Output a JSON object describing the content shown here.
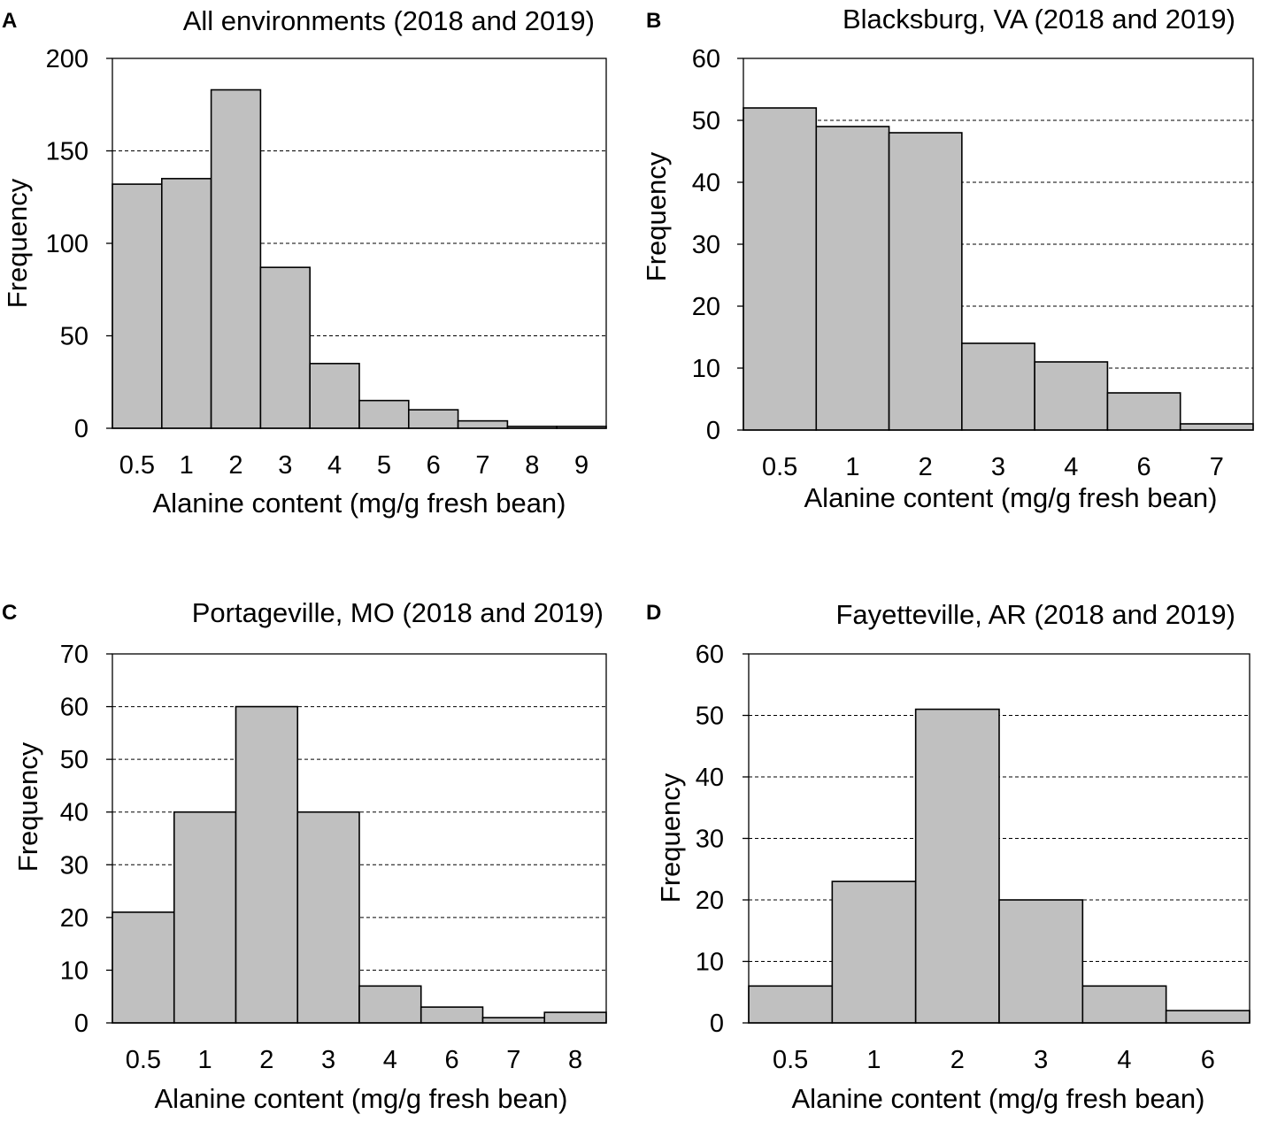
{
  "chart_data": [
    {
      "type": "bar",
      "panel": "A",
      "title": "All environments (2018 and 2019)",
      "xlabel": "Alanine content (mg/g fresh bean)",
      "ylabel": "Frequency",
      "categories": [
        "0.5",
        "1",
        "2",
        "3",
        "4",
        "5",
        "6",
        "7",
        "8",
        "9"
      ],
      "values": [
        132,
        135,
        183,
        87,
        35,
        15,
        10,
        4,
        1,
        1
      ],
      "ylim": [
        0,
        200
      ],
      "yticks": [
        0,
        50,
        100,
        150,
        200
      ],
      "grid": true
    },
    {
      "type": "bar",
      "panel": "B",
      "title": "Blacksburg, VA (2018 and 2019)",
      "xlabel": "Alanine content (mg/g fresh bean)",
      "ylabel": "Frequency",
      "categories": [
        "0.5",
        "1",
        "2",
        "3",
        "4",
        "6",
        "7"
      ],
      "values": [
        52,
        49,
        48,
        14,
        11,
        6,
        1
      ],
      "ylim": [
        0,
        60
      ],
      "yticks": [
        0,
        10,
        20,
        30,
        40,
        50,
        60
      ],
      "grid": true
    },
    {
      "type": "bar",
      "panel": "C",
      "title": "Portageville, MO (2018 and 2019)",
      "xlabel": "Alanine content (mg/g fresh bean)",
      "ylabel": "Frequency",
      "categories": [
        "0.5",
        "1",
        "2",
        "3",
        "4",
        "6",
        "7",
        "8"
      ],
      "values": [
        21,
        40,
        60,
        40,
        7,
        3,
        1,
        2
      ],
      "ylim": [
        0,
        70
      ],
      "yticks": [
        0,
        10,
        20,
        30,
        40,
        50,
        60,
        70
      ],
      "grid": true
    },
    {
      "type": "bar",
      "panel": "D",
      "title": "Fayetteville, AR (2018 and 2019)",
      "xlabel": "Alanine content (mg/g fresh bean)",
      "ylabel": "Frequency",
      "categories": [
        "0.5",
        "1",
        "2",
        "3",
        "4",
        "6"
      ],
      "values": [
        6,
        23,
        51,
        20,
        6,
        2
      ],
      "ylim": [
        0,
        60
      ],
      "yticks": [
        0,
        10,
        20,
        30,
        40,
        50,
        60
      ],
      "grid": true
    }
  ],
  "colors": {
    "bar_fill": "#c0c0c0",
    "bar_stroke": "#000000",
    "grid": "#000000"
  }
}
